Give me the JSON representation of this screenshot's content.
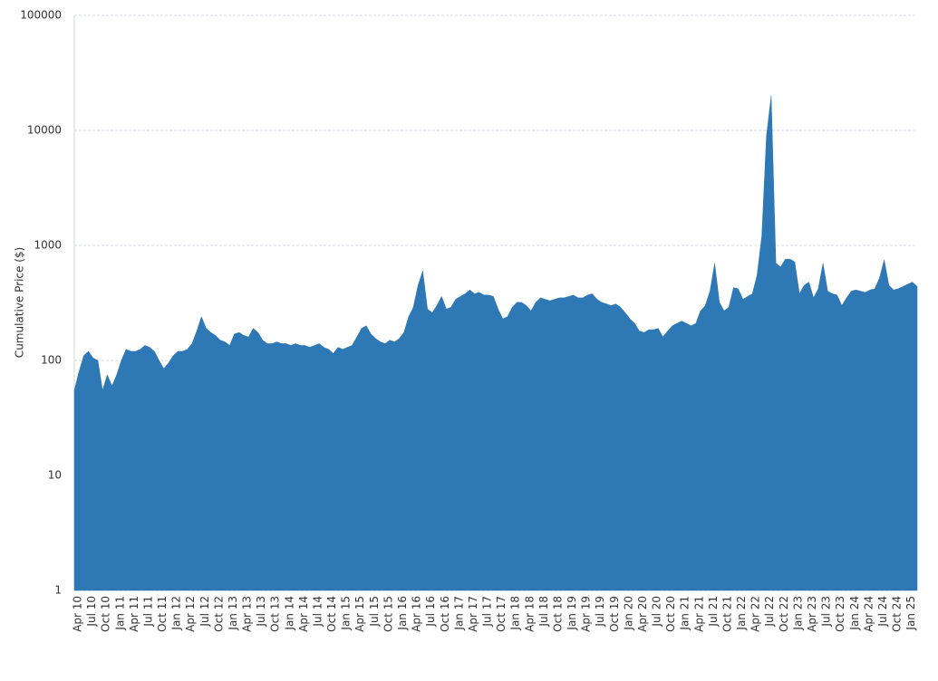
{
  "chart_data": {
    "type": "area",
    "y_label": "Cumulative Price ($)",
    "color": "#2e78b5",
    "log_y": true,
    "grid": true,
    "ylim": [
      1,
      100000
    ],
    "yticks": [
      1,
      10,
      100,
      1000,
      10000,
      100000
    ],
    "categories": [
      "Apr 10",
      null,
      null,
      "Jul 10",
      null,
      null,
      "Oct 10",
      null,
      null,
      "Jan 11",
      null,
      null,
      "Apr 11",
      null,
      null,
      "Jul 11",
      null,
      null,
      "Oct 11",
      null,
      null,
      "Jan 12",
      null,
      null,
      "Apr 12",
      null,
      null,
      "Jul 12",
      null,
      null,
      "Oct 12",
      null,
      null,
      "Jan 13",
      null,
      null,
      "Apr 13",
      null,
      null,
      "Jul 13",
      null,
      null,
      "Oct 13",
      null,
      null,
      "Jan 14",
      null,
      null,
      "Apr 14",
      null,
      null,
      "Jul 14",
      null,
      null,
      "Oct 14",
      null,
      null,
      "Jan 15",
      null,
      null,
      "Apr 15",
      null,
      null,
      "Jul 15",
      null,
      null,
      "Oct 15",
      null,
      null,
      "Jan 16",
      null,
      null,
      "Apr 16",
      null,
      null,
      "Jul 16",
      null,
      null,
      "Oct 16",
      null,
      null,
      "Jan 17",
      null,
      null,
      "Apr 17",
      null,
      null,
      "Jul 17",
      null,
      null,
      "Oct 17",
      null,
      null,
      "Jan 18",
      null,
      null,
      "Apr 18",
      null,
      null,
      "Jul 18",
      null,
      null,
      "Oct 18",
      null,
      null,
      "Jan 19",
      null,
      null,
      "Apr 19",
      null,
      null,
      "Jul 19",
      null,
      null,
      "Oct 19",
      null,
      null,
      "Jan 20",
      null,
      null,
      "Apr 20",
      null,
      null,
      "Jul 20",
      null,
      null,
      "Oct 20",
      null,
      null,
      "Jan 21",
      null,
      null,
      "Apr 21",
      null,
      null,
      "Jul 21",
      null,
      null,
      "Oct 21",
      null,
      null,
      "Jan 22",
      null,
      null,
      "Apr 22",
      null,
      null,
      "Jul 22",
      null,
      null,
      "Oct 22",
      null,
      null,
      "Jan 23",
      null,
      null,
      "Apr 23",
      null,
      null,
      "Jul 23",
      null,
      null,
      "Oct 23",
      null,
      null,
      "Jan 24",
      null,
      null,
      "Apr 24",
      null,
      null,
      "Jul 24",
      null,
      null,
      "Oct 24",
      null,
      null,
      "Jan 25",
      null,
      null
    ],
    "values": [
      55,
      80,
      110,
      120,
      105,
      100,
      55,
      75,
      60,
      75,
      100,
      125,
      120,
      120,
      125,
      135,
      130,
      120,
      100,
      85,
      95,
      110,
      120,
      120,
      125,
      140,
      180,
      240,
      190,
      175,
      165,
      150,
      145,
      135,
      170,
      175,
      165,
      160,
      190,
      175,
      150,
      140,
      140,
      145,
      140,
      140,
      135,
      140,
      135,
      135,
      130,
      135,
      140,
      130,
      125,
      115,
      130,
      125,
      130,
      135,
      160,
      190,
      200,
      170,
      155,
      145,
      140,
      150,
      145,
      155,
      175,
      240,
      290,
      450,
      600,
      280,
      260,
      300,
      360,
      280,
      290,
      340,
      360,
      380,
      410,
      380,
      390,
      370,
      370,
      360,
      280,
      230,
      240,
      290,
      320,
      320,
      300,
      270,
      320,
      350,
      340,
      330,
      340,
      350,
      350,
      360,
      370,
      350,
      350,
      370,
      380,
      340,
      320,
      310,
      300,
      310,
      290,
      260,
      230,
      210,
      180,
      175,
      185,
      185,
      190,
      160,
      180,
      200,
      210,
      220,
      210,
      200,
      210,
      270,
      300,
      400,
      700,
      320,
      270,
      290,
      430,
      420,
      340,
      360,
      380,
      550,
      1200,
      9000,
      20000,
      700,
      650,
      760,
      760,
      720,
      380,
      450,
      480,
      350,
      420,
      700,
      400,
      380,
      370,
      300,
      350,
      400,
      410,
      400,
      390,
      410,
      420,
      520,
      750,
      450,
      410,
      420,
      440,
      460,
      480,
      440
    ]
  }
}
